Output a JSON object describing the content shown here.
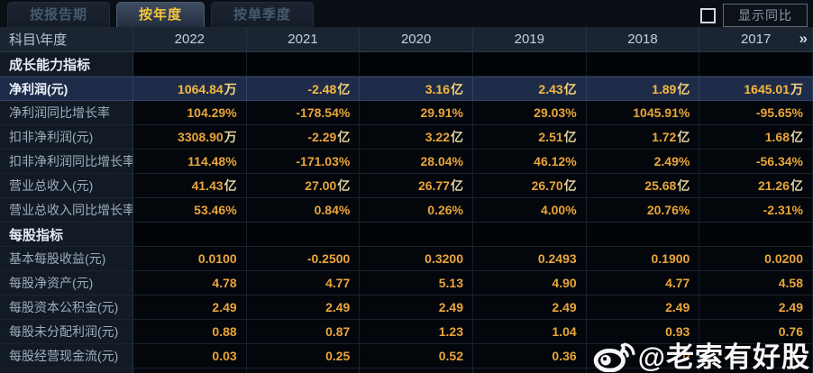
{
  "tabs": [
    {
      "label": "按报告期",
      "active": false
    },
    {
      "label": "按年度",
      "active": true
    },
    {
      "label": "按单季度",
      "active": false
    }
  ],
  "controls": {
    "show_yoy_label": "显示同比",
    "show_yoy_checked": false,
    "more_years_icon": "»"
  },
  "table": {
    "corner_header": "科目\\年度",
    "year_columns": [
      "2022",
      "2021",
      "2020",
      "2019",
      "2018",
      "2017"
    ],
    "rows": [
      {
        "type": "section",
        "label": "成长能力指标"
      },
      {
        "type": "data",
        "highlight": true,
        "label": "净利润(元)",
        "values": [
          "1064.84万",
          "-2.48亿",
          "3.16亿",
          "2.43亿",
          "1.89亿",
          "1645.01万"
        ]
      },
      {
        "type": "data",
        "highlight": false,
        "label": "净利润同比增长率",
        "values": [
          "104.29%",
          "-178.54%",
          "29.91%",
          "29.03%",
          "1045.91%",
          "-95.65%"
        ]
      },
      {
        "type": "data",
        "highlight": false,
        "label": "扣非净利润(元)",
        "values": [
          "3308.90万",
          "-2.29亿",
          "3.22亿",
          "2.51亿",
          "1.72亿",
          "1.68亿"
        ]
      },
      {
        "type": "data",
        "highlight": false,
        "label": "扣非净利润同比增长率",
        "values": [
          "114.48%",
          "-171.03%",
          "28.04%",
          "46.12%",
          "2.49%",
          "-56.34%"
        ]
      },
      {
        "type": "data",
        "highlight": false,
        "label": "营业总收入(元)",
        "values": [
          "41.43亿",
          "27.00亿",
          "26.77亿",
          "26.70亿",
          "25.68亿",
          "21.26亿"
        ]
      },
      {
        "type": "data",
        "highlight": false,
        "label": "营业总收入同比增长率",
        "values": [
          "53.46%",
          "0.84%",
          "0.26%",
          "4.00%",
          "20.76%",
          "-2.31%"
        ]
      },
      {
        "type": "section",
        "label": "每股指标"
      },
      {
        "type": "data",
        "highlight": false,
        "label": "基本每股收益(元)",
        "values": [
          "0.0100",
          "-0.2500",
          "0.3200",
          "0.2493",
          "0.1900",
          "0.0200"
        ]
      },
      {
        "type": "data",
        "highlight": false,
        "label": "每股净资产(元)",
        "values": [
          "4.78",
          "4.77",
          "5.13",
          "4.90",
          "4.77",
          "4.58"
        ]
      },
      {
        "type": "data",
        "highlight": false,
        "label": "每股资本公积金(元)",
        "values": [
          "2.49",
          "2.49",
          "2.49",
          "2.49",
          "2.49",
          "2.49"
        ]
      },
      {
        "type": "data",
        "highlight": false,
        "label": "每股未分配利润(元)",
        "values": [
          "0.88",
          "0.87",
          "1.23",
          "1.04",
          "0.93",
          "0.76"
        ]
      },
      {
        "type": "data",
        "highlight": false,
        "label": "每股经营现金流(元)",
        "values": [
          "0.03",
          "0.25",
          "0.52",
          "0.36",
          "0",
          ""
        ]
      }
    ]
  },
  "watermark": {
    "icon": "weibo-icon",
    "handle": "@老索有好股"
  },
  "colors": {
    "value_gold": "#e8a53a",
    "value_unit": "#e2d2a2",
    "highlight_value": "#f5b93e",
    "highlight_row_bg": "#1e2b49",
    "active_tab_text": "#f6c63e",
    "header_bg": "#1b2531",
    "label_bg": "#121a25",
    "data_bg": "#03060a"
  }
}
